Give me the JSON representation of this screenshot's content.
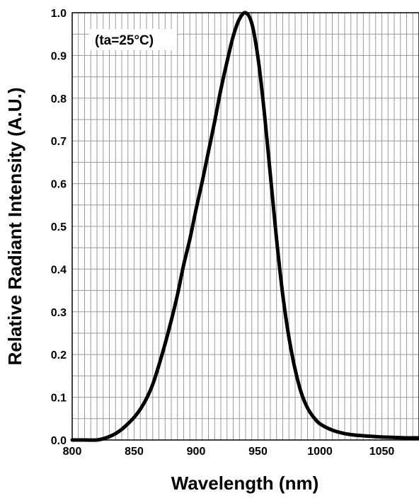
{
  "chart_data": {
    "type": "line",
    "xlabel": "Wavelength (nm)",
    "ylabel": "Relative Radiant Intensity (A.U.)",
    "annotation": "(ta=25°C)",
    "xlim": [
      800,
      1080
    ],
    "ylim": [
      0,
      1.0
    ],
    "x_ticks": [
      "800",
      "850",
      "900",
      "950",
      "1000",
      "1050"
    ],
    "y_ticks": [
      "0.0",
      "0.1",
      "0.2",
      "0.3",
      "0.4",
      "0.5",
      "0.6",
      "0.7",
      "0.8",
      "0.9",
      "1.0"
    ],
    "x_minor_step": 5,
    "y_minor_step": 0.05,
    "grid": true,
    "series": [
      {
        "color": "#000000",
        "points": [
          [
            800,
            0.0
          ],
          [
            810,
            0.0
          ],
          [
            820,
            0.0
          ],
          [
            825,
            0.003
          ],
          [
            830,
            0.008
          ],
          [
            835,
            0.015
          ],
          [
            840,
            0.025
          ],
          [
            845,
            0.038
          ],
          [
            850,
            0.053
          ],
          [
            855,
            0.072
          ],
          [
            860,
            0.097
          ],
          [
            865,
            0.13
          ],
          [
            870,
            0.175
          ],
          [
            875,
            0.225
          ],
          [
            880,
            0.28
          ],
          [
            885,
            0.34
          ],
          [
            890,
            0.41
          ],
          [
            895,
            0.47
          ],
          [
            900,
            0.54
          ],
          [
            905,
            0.605
          ],
          [
            910,
            0.675
          ],
          [
            915,
            0.745
          ],
          [
            920,
            0.82
          ],
          [
            925,
            0.885
          ],
          [
            930,
            0.945
          ],
          [
            935,
            0.985
          ],
          [
            940,
            1.0
          ],
          [
            945,
            0.975
          ],
          [
            950,
            0.895
          ],
          [
            955,
            0.77
          ],
          [
            960,
            0.62
          ],
          [
            965,
            0.47
          ],
          [
            970,
            0.34
          ],
          [
            975,
            0.24
          ],
          [
            980,
            0.165
          ],
          [
            985,
            0.11
          ],
          [
            990,
            0.075
          ],
          [
            995,
            0.053
          ],
          [
            1000,
            0.038
          ],
          [
            1010,
            0.023
          ],
          [
            1020,
            0.015
          ],
          [
            1030,
            0.011
          ],
          [
            1040,
            0.009
          ],
          [
            1050,
            0.007
          ],
          [
            1060,
            0.006
          ],
          [
            1070,
            0.005
          ],
          [
            1080,
            0.005
          ]
        ]
      }
    ]
  }
}
